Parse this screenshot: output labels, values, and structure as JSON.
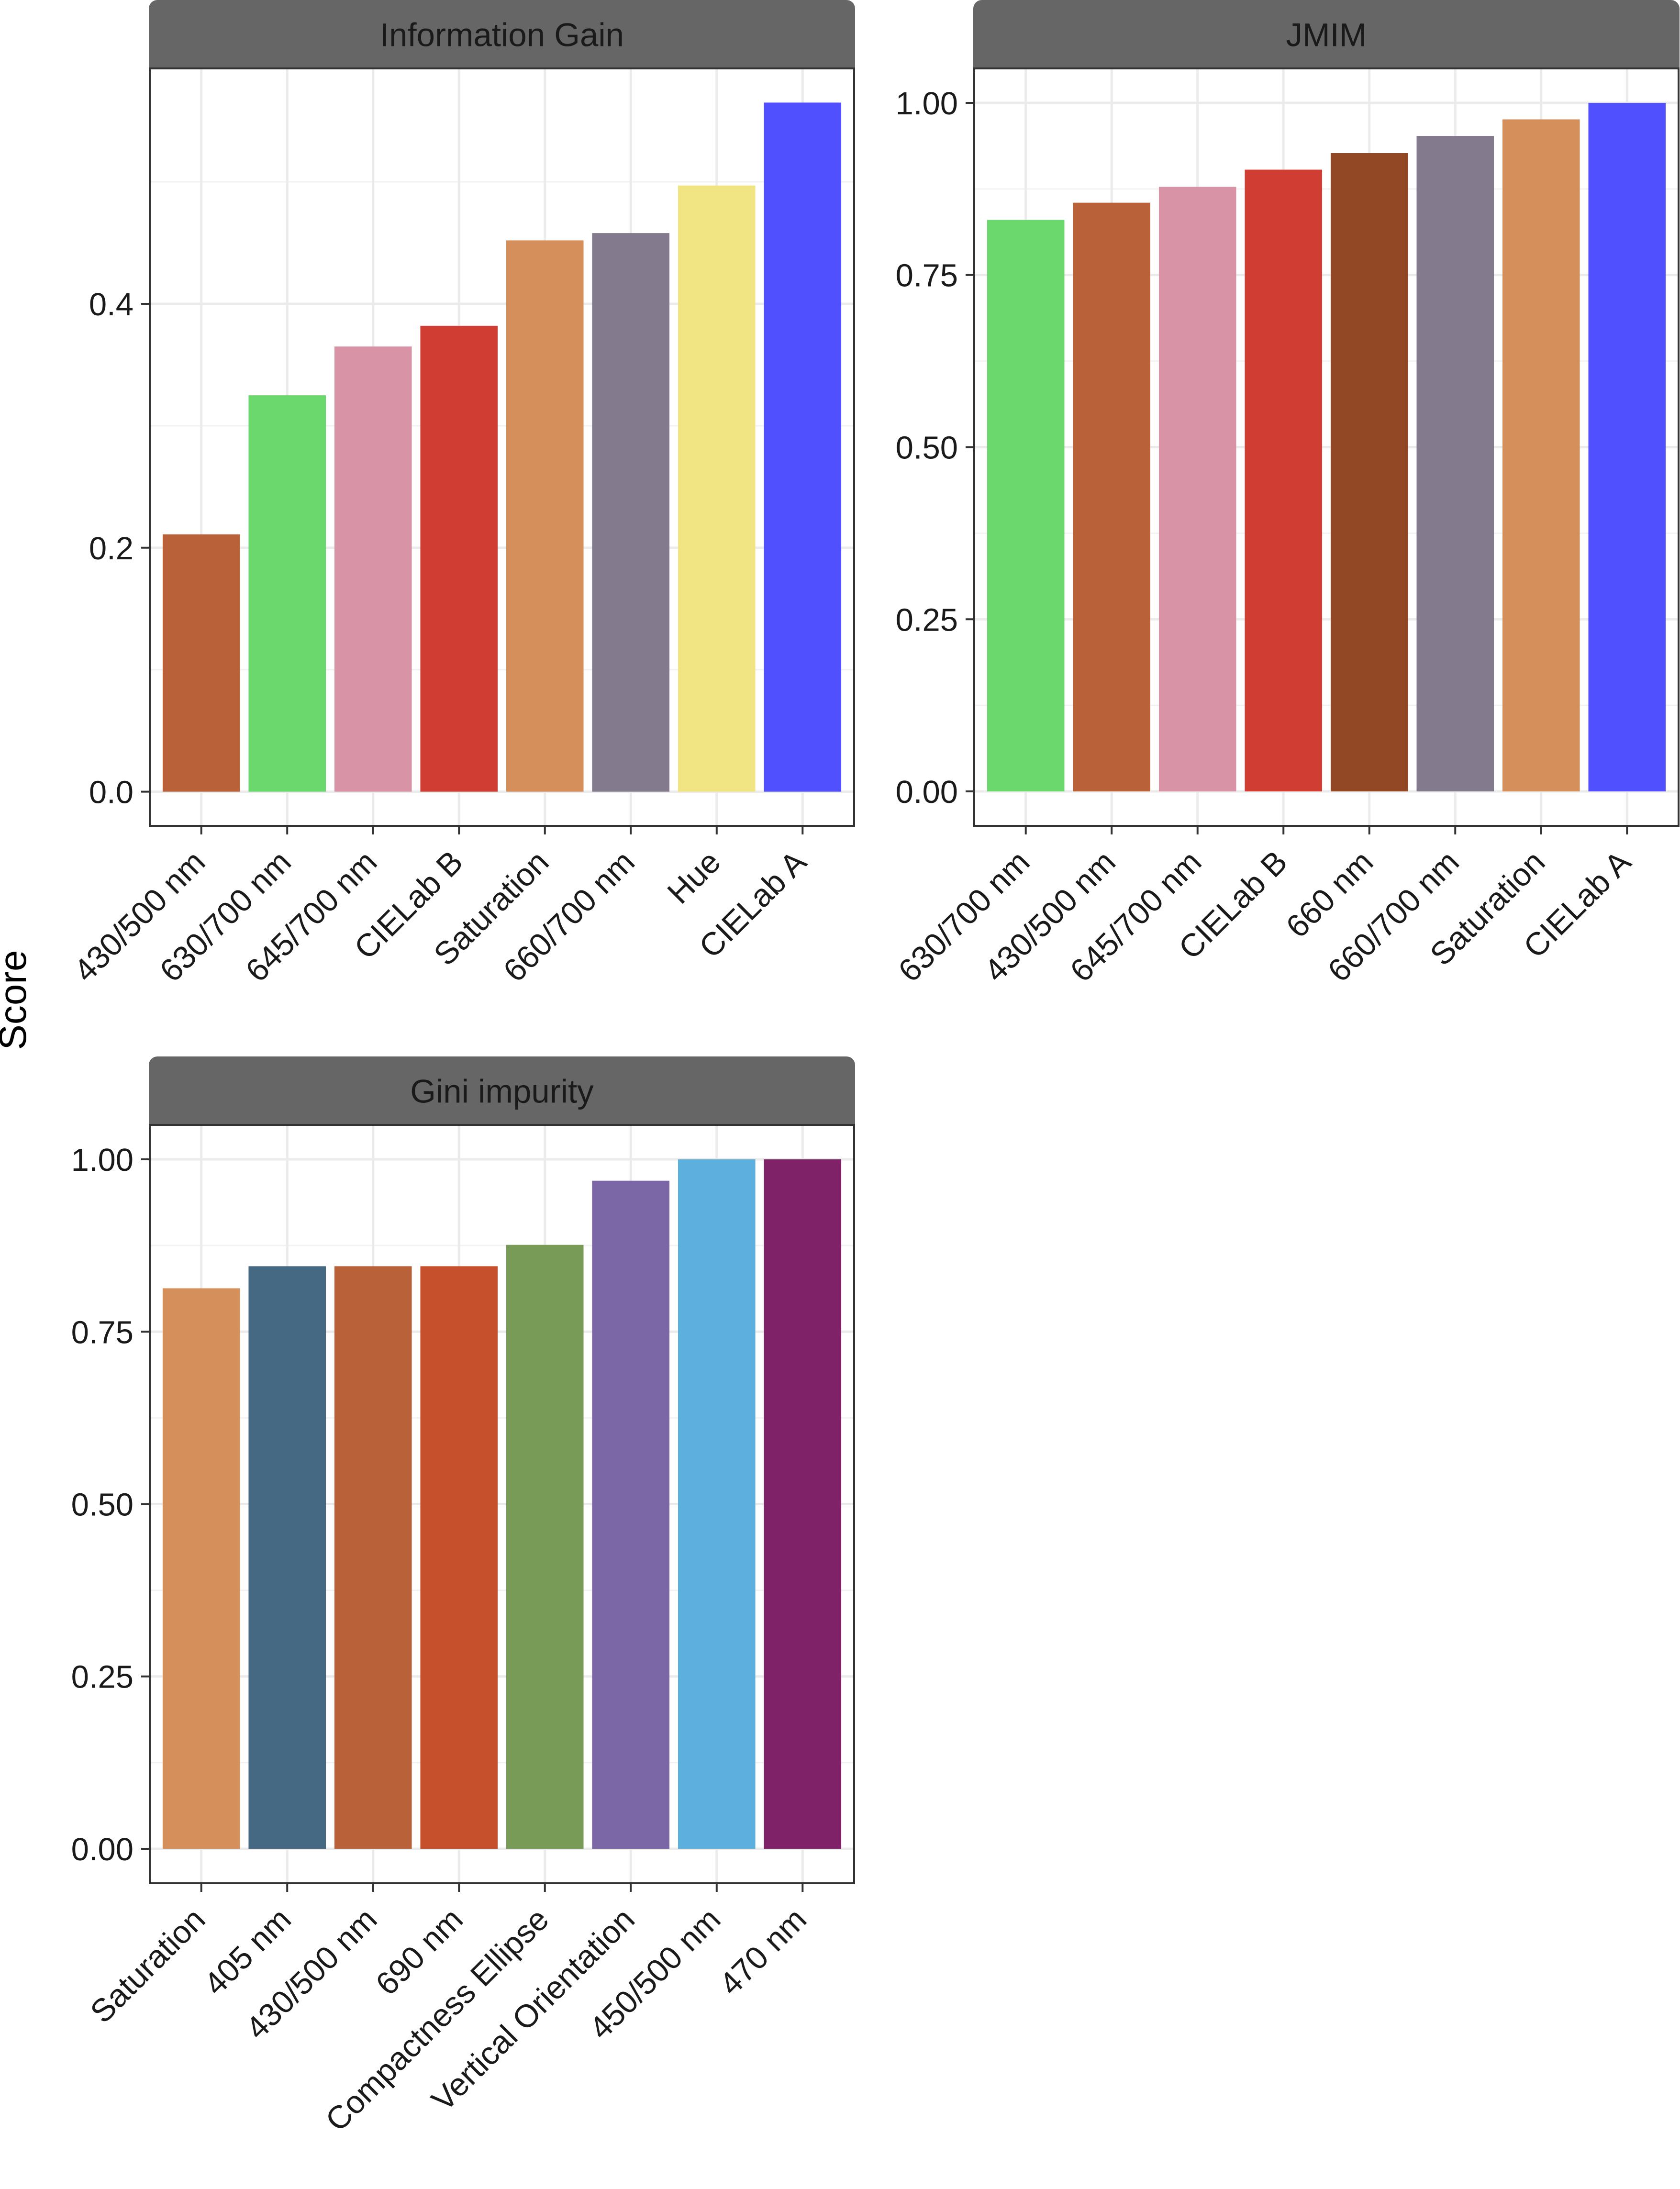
{
  "figure": {
    "ylabel": "Score"
  },
  "chart_data": [
    {
      "type": "bar",
      "title": "Information Gain",
      "categories": [
        "430/500 nm",
        "630/700 nm",
        "645/700 nm",
        "CIELab B",
        "Saturation",
        "660/700 nm",
        "Hue",
        "CIELab A"
      ],
      "values": [
        0.211,
        0.325,
        0.365,
        0.382,
        0.452,
        0.458,
        0.497,
        0.565
      ],
      "colors": [
        "#B9623A",
        "#6AD86C",
        "#D993A6",
        "#CF3D33",
        "#D58F5B",
        "#837A8D",
        "#F1E583",
        "#5050FF"
      ],
      "ylim": [
        -0.028,
        0.593
      ],
      "yticks": [
        0.0,
        0.2,
        0.4
      ],
      "ytick_labels": [
        "0.0",
        "0.2",
        "0.4"
      ],
      "yminor": [
        0.1,
        0.3,
        0.5
      ],
      "xlabel": "",
      "ylabel": "Score"
    },
    {
      "type": "bar",
      "title": "JMIM",
      "categories": [
        "630/700 nm",
        "430/500 nm",
        "645/700 nm",
        "CIELab B",
        "660 nm",
        "660/700 nm",
        "Saturation",
        "CIELab A"
      ],
      "values": [
        0.83,
        0.855,
        0.878,
        0.903,
        0.927,
        0.952,
        0.976,
        1.0
      ],
      "colors": [
        "#6AD86C",
        "#B9623A",
        "#D993A6",
        "#CF3D33",
        "#924824",
        "#837A8D",
        "#D58F5B",
        "#5050FF"
      ],
      "ylim": [
        -0.05,
        1.05
      ],
      "yticks": [
        0.0,
        0.25,
        0.5,
        0.75,
        1.0
      ],
      "ytick_labels": [
        "0.00",
        "0.25",
        "0.50",
        "0.75",
        "1.00"
      ],
      "yminor": [
        0.125,
        0.375,
        0.625,
        0.875
      ],
      "xlabel": "",
      "ylabel": "Score"
    },
    {
      "type": "bar",
      "title": "Gini impurity",
      "categories": [
        "Saturation",
        "405 nm",
        "430/500 nm",
        "690 nm",
        "Compactness Ellipse",
        "Vertical Orientation",
        "450/500 nm",
        "470 nm"
      ],
      "values": [
        0.813,
        0.845,
        0.845,
        0.845,
        0.876,
        0.969,
        1.0,
        1.0
      ],
      "colors": [
        "#D58F5B",
        "#466983",
        "#B9623A",
        "#C5502B",
        "#789C57",
        "#7B66A6",
        "#5DB0DD",
        "#802268"
      ],
      "ylim": [
        -0.05,
        1.05
      ],
      "yticks": [
        0.0,
        0.25,
        0.5,
        0.75,
        1.0
      ],
      "ytick_labels": [
        "0.00",
        "0.25",
        "0.50",
        "0.75",
        "1.00"
      ],
      "yminor": [
        0.125,
        0.375,
        0.625,
        0.875
      ],
      "xlabel": "",
      "ylabel": "Score"
    }
  ]
}
